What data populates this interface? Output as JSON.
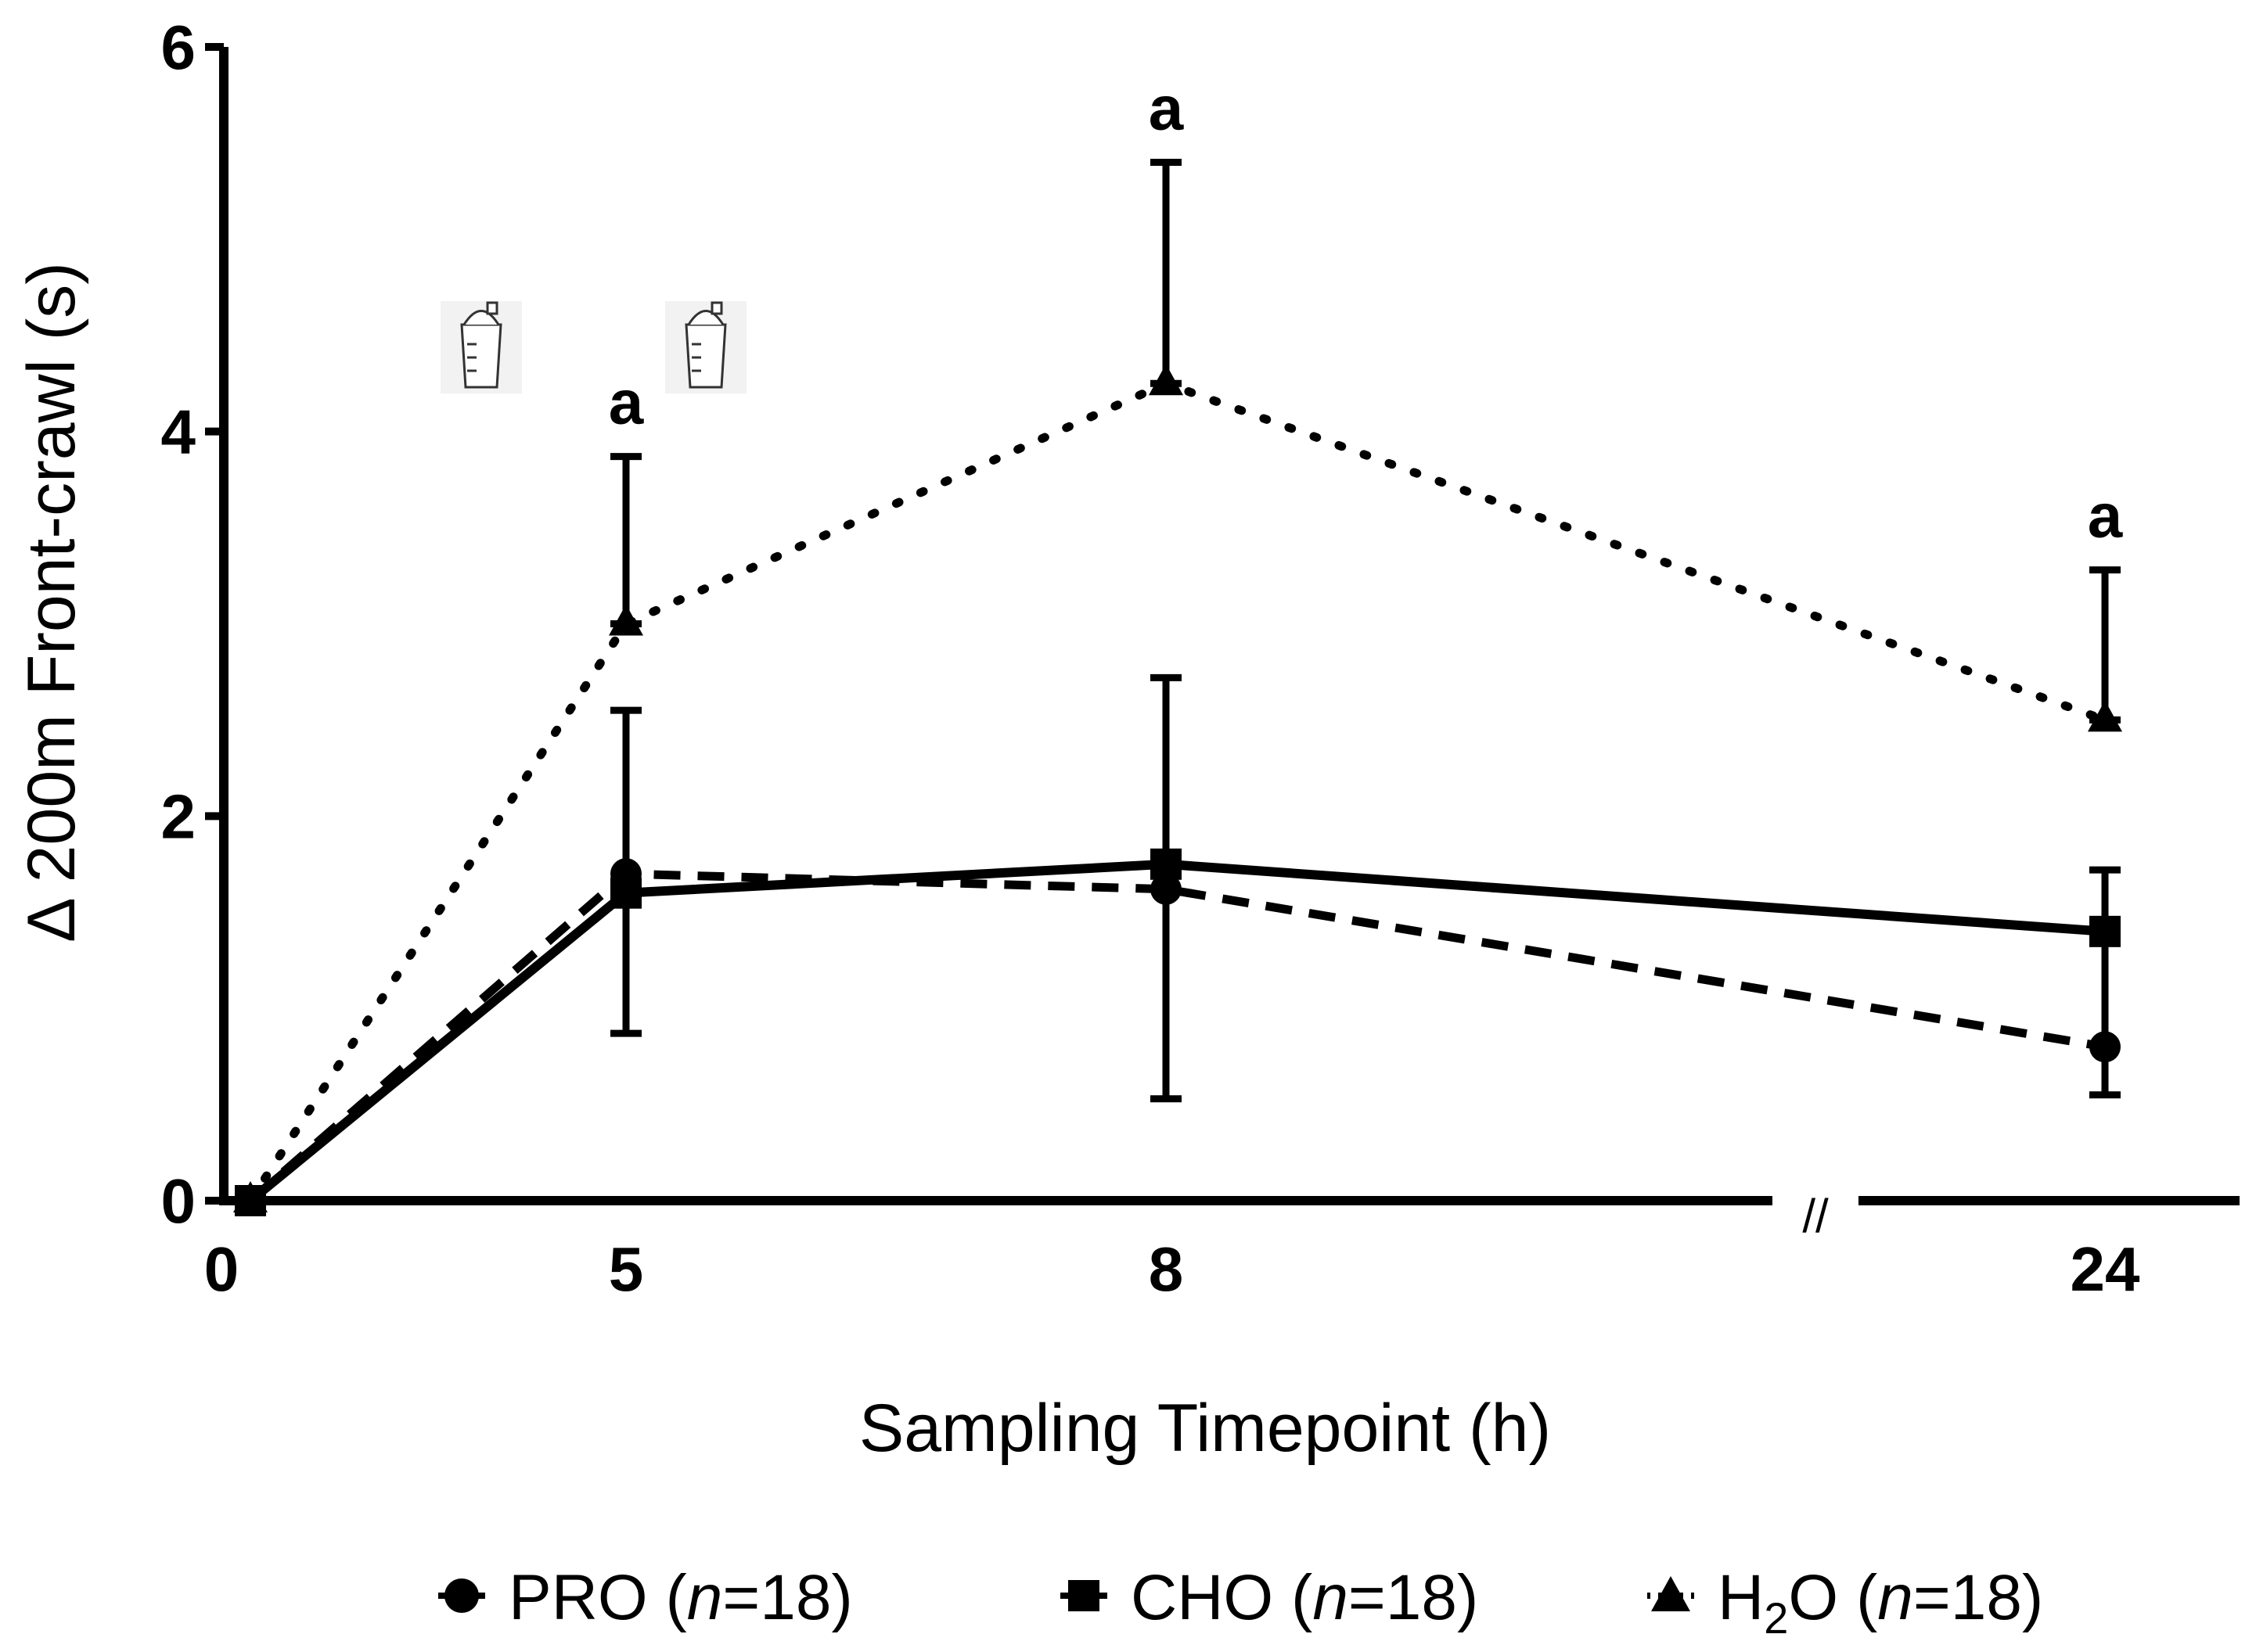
{
  "chart_data": {
    "type": "line",
    "title": "",
    "xlabel": "Sampling Timepoint (h)",
    "ylabel": "Δ 200m Front-crawl (s)",
    "ylim": [
      0,
      6
    ],
    "yticks": [
      "0",
      "2",
      "4",
      "6"
    ],
    "xticks": [
      "0",
      "5",
      "8",
      "24"
    ],
    "x": [
      0,
      5,
      8,
      24
    ],
    "axis_break_mark": "//",
    "significance_marker": "a",
    "significance_at": [
      "5",
      "8",
      "24"
    ],
    "drink_icons": [
      "shaker-cup-icon",
      "shaker-cup-icon"
    ],
    "series": [
      {
        "name": "PRO",
        "legend_n_label": "n",
        "legend_n_value": "=18",
        "legend_suffix": ")",
        "marker": "circle",
        "line_style": "dashed",
        "values": [
          0,
          1.7,
          1.62,
          0.8
        ],
        "error_upper": [
          0,
          2.55,
          2.72,
          1.72
        ],
        "error_lower": [
          0,
          0.87,
          0.53,
          0.55
        ]
      },
      {
        "name": "CHO",
        "legend_n_label": "n",
        "legend_n_value": "=18",
        "legend_suffix": ")",
        "marker": "square",
        "line_style": "solid",
        "values": [
          0,
          1.6,
          1.75,
          1.4
        ],
        "error_upper": [
          0,
          2.55,
          2.72,
          1.72
        ],
        "error_lower": [
          0,
          0.87,
          0.53,
          0.55
        ]
      },
      {
        "name": "H2O",
        "legend_n_label": "n",
        "legend_n_value": "=18",
        "legend_suffix": ")",
        "marker": "triangle",
        "line_style": "dotted",
        "values": [
          0,
          3.0,
          4.25,
          2.5
        ],
        "error_upper": [
          0,
          3.87,
          5.4,
          3.28
        ],
        "error_lower": [
          0,
          3.0,
          4.25,
          2.5
        ]
      }
    ],
    "legend": {
      "placement": "bottom",
      "items": [
        {
          "label": "PRO (",
          "n": "n",
          "rest": "=18)"
        },
        {
          "label": "CHO (",
          "n": "n",
          "rest": "=18)"
        },
        {
          "label_main": "H",
          "label_sub": "2",
          "label_tail": "O (",
          "n": "n",
          "rest": "=18)"
        }
      ]
    }
  }
}
